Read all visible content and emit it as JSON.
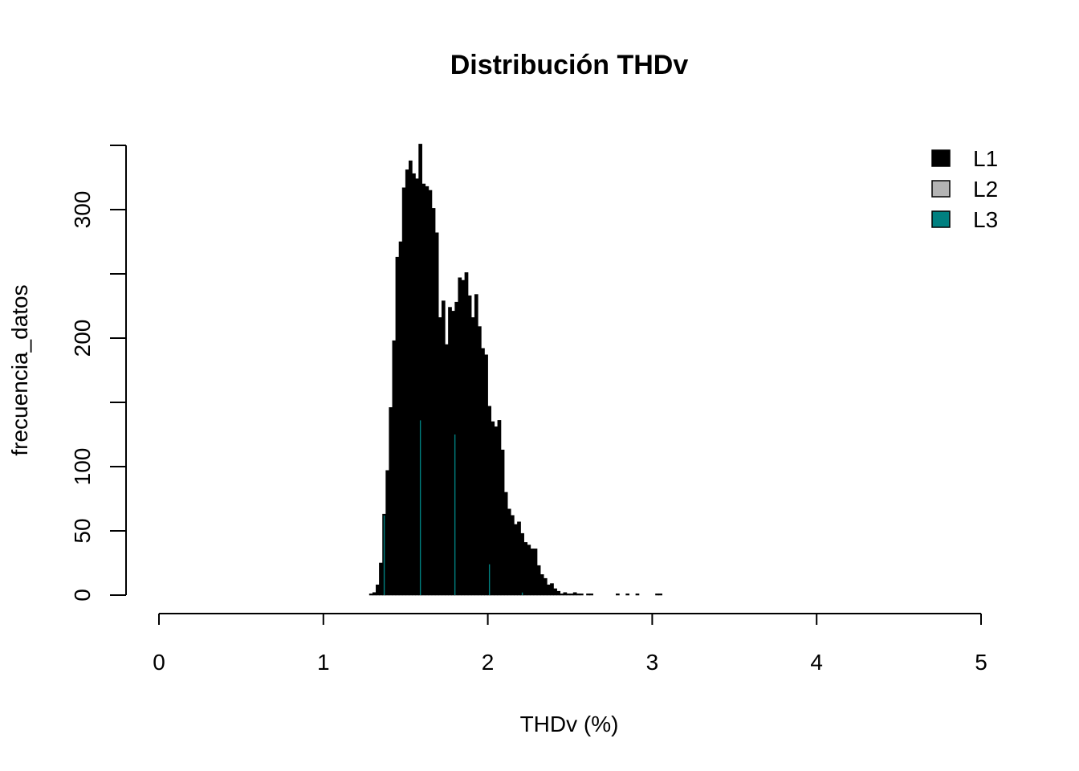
{
  "chart_data": {
    "type": "bar",
    "title": "Distribución THDv",
    "xlabel": "THDv (%)",
    "ylabel": "frecuencia_datos",
    "xlim": [
      0,
      5
    ],
    "ylim": [
      0,
      350
    ],
    "x_ticks": [
      "0",
      "1",
      "2",
      "3",
      "4",
      "5"
    ],
    "y_ticks": [
      "0",
      "50",
      "100",
      "200",
      "300"
    ],
    "y_tick_values": [
      0,
      50,
      100,
      150,
      200,
      250,
      300,
      350
    ],
    "y_tick_labels": [
      "0",
      "50",
      "100",
      "",
      "200",
      "",
      "300",
      ""
    ],
    "bin_width": 0.02,
    "legend": {
      "position": "top-right",
      "entries": [
        "L1",
        "L2",
        "L3"
      ]
    },
    "series": [
      {
        "name": "L1",
        "color": "#000000",
        "x": [
          1.29,
          1.31,
          1.33,
          1.35,
          1.37,
          1.39,
          1.41,
          1.43,
          1.45,
          1.47,
          1.49,
          1.51,
          1.53,
          1.55,
          1.57,
          1.59,
          1.61,
          1.63,
          1.65,
          1.67,
          1.69,
          1.71,
          1.73,
          1.75,
          1.77,
          1.79,
          1.81,
          1.83,
          1.85,
          1.87,
          1.89,
          1.91,
          1.93,
          1.95,
          1.97,
          1.99,
          2.01,
          2.03,
          2.05,
          2.07,
          2.09,
          2.11,
          2.13,
          2.15,
          2.17,
          2.19,
          2.21,
          2.23,
          2.25,
          2.27,
          2.29,
          2.31,
          2.33,
          2.35,
          2.37,
          2.39,
          2.41,
          2.43,
          2.45,
          2.47,
          2.49,
          2.51,
          2.53,
          2.55,
          2.57,
          2.59,
          2.61,
          2.63,
          2.65,
          2.67,
          2.69,
          2.71,
          2.73,
          2.75,
          2.77,
          2.79,
          2.81,
          2.83,
          2.85,
          2.87,
          2.89,
          2.91,
          2.93,
          2.95,
          2.97,
          2.99,
          3.01,
          3.03,
          3.05
        ],
        "values": [
          1,
          2,
          8,
          25,
          63,
          97,
          146,
          198,
          263,
          275,
          317,
          331,
          338,
          328,
          324,
          351,
          320,
          318,
          315,
          301,
          282,
          216,
          229,
          195,
          224,
          221,
          228,
          247,
          245,
          251,
          233,
          216,
          234,
          209,
          192,
          187,
          147,
          135,
          131,
          136,
          113,
          80,
          67,
          62,
          55,
          57,
          48,
          41,
          39,
          36,
          36,
          23,
          16,
          13,
          8,
          9,
          5,
          3,
          1,
          2,
          1,
          1,
          2,
          1,
          1,
          0,
          1,
          1,
          0,
          0,
          0,
          0,
          0,
          0,
          0,
          1,
          0,
          0,
          1,
          0,
          0,
          1,
          0,
          0,
          0,
          0,
          0,
          1,
          1
        ]
      },
      {
        "name": "L2",
        "color": "#b3b3b3",
        "x": [],
        "values": []
      },
      {
        "name": "L3",
        "color": "#008080",
        "x": [
          1.37,
          1.59,
          1.8,
          2.01,
          2.21,
          2.41
        ],
        "values": [
          62,
          136,
          125,
          24,
          2,
          0
        ]
      }
    ]
  }
}
